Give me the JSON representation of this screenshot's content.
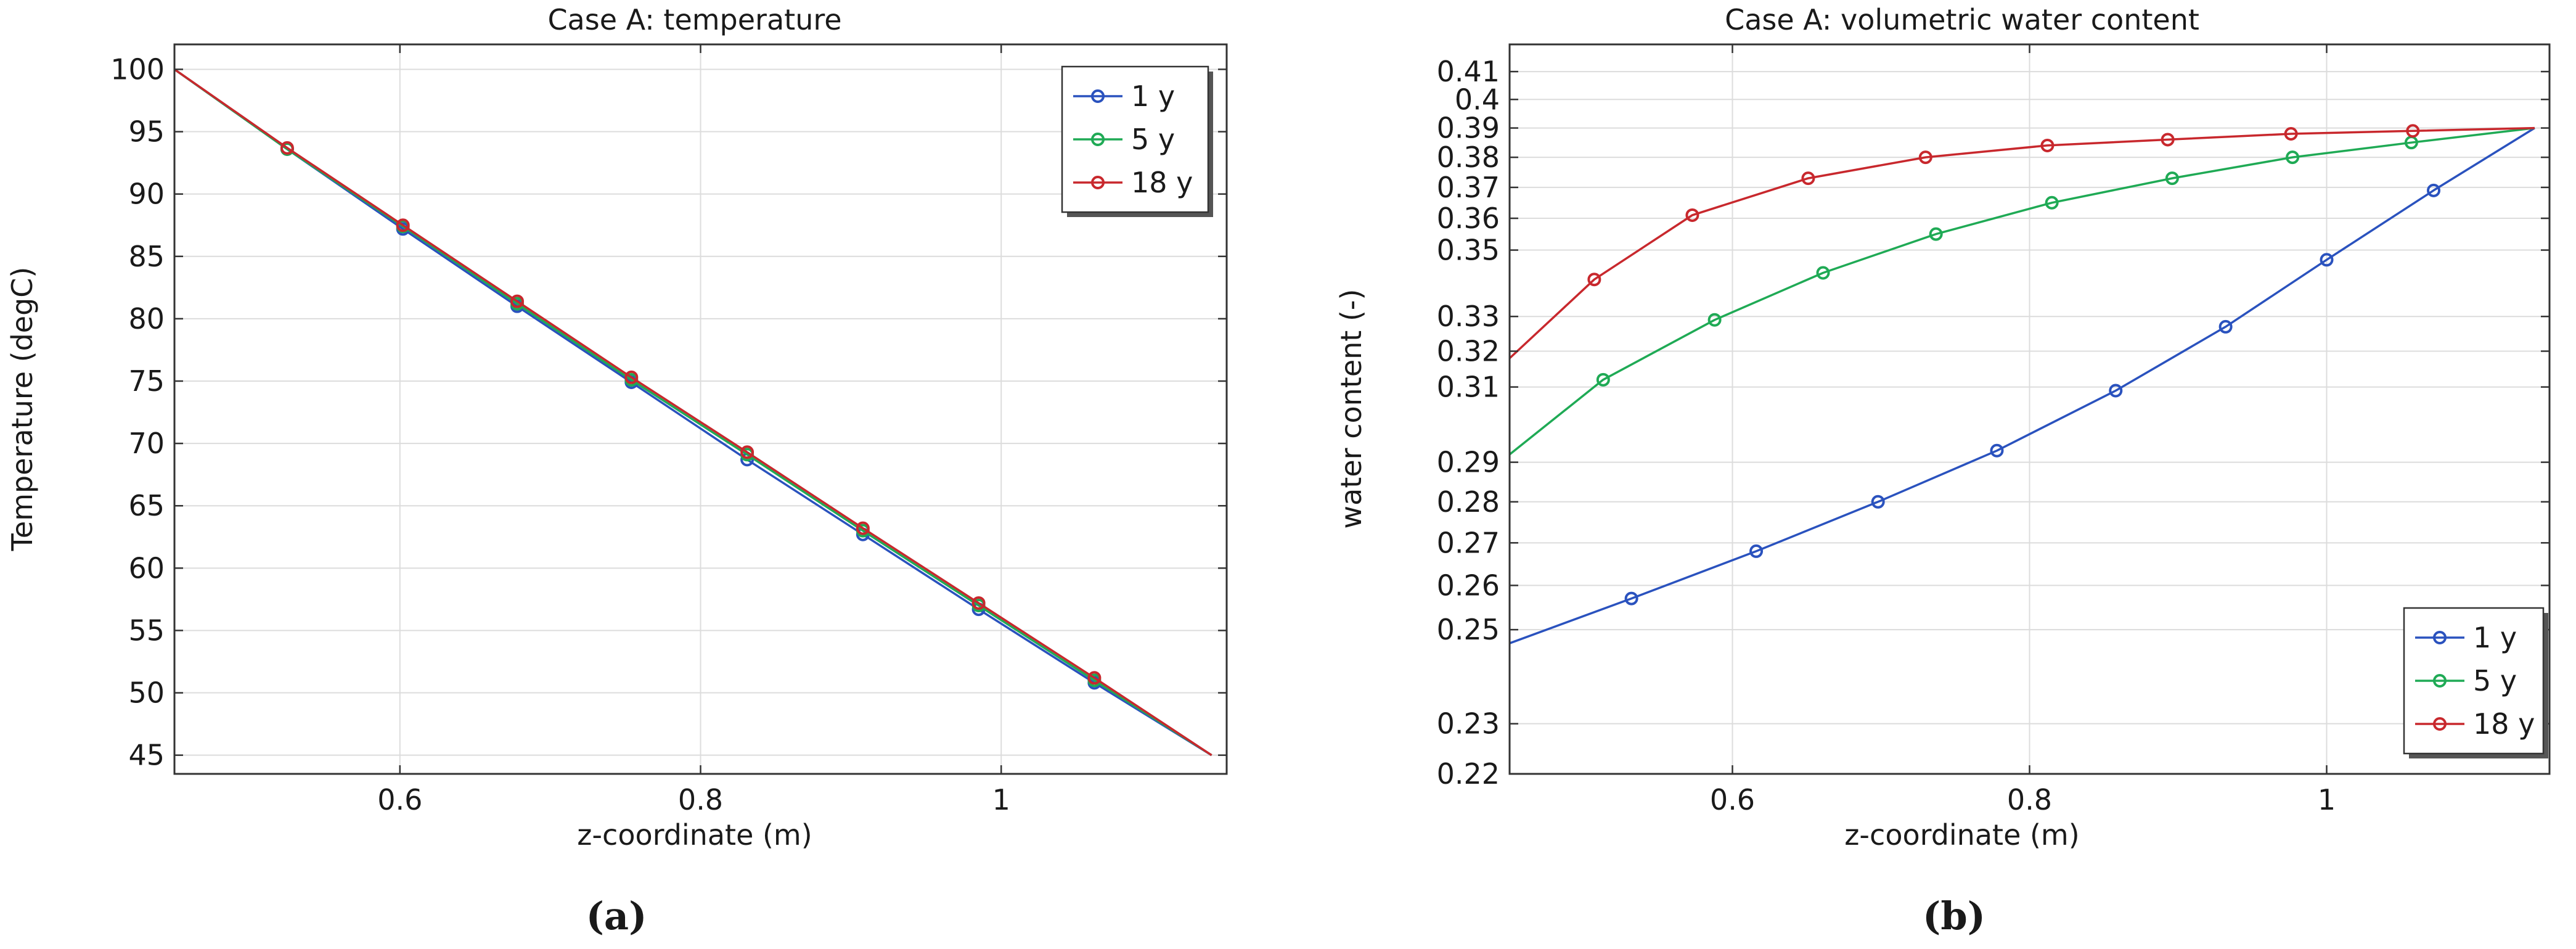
{
  "chart_data": [
    {
      "panel_label": "(a)",
      "type": "line",
      "title": "Case A: temperature",
      "xlabel": "z-coordinate (m)",
      "ylabel": "Temperature (degC)",
      "xlim": [
        0.45,
        1.15
      ],
      "ylim": [
        43.5,
        102
      ],
      "xscale": "linear",
      "yscale": "linear",
      "xticks": [
        0.6,
        0.8,
        1
      ],
      "xtick_labels": [
        "0.6",
        "0.8",
        "1"
      ],
      "yticks": [
        45,
        50,
        55,
        60,
        65,
        70,
        75,
        80,
        85,
        90,
        95,
        100
      ],
      "ytick_labels": [
        "45",
        "50",
        "55",
        "60",
        "65",
        "70",
        "75",
        "80",
        "85",
        "90",
        "95",
        "100"
      ],
      "grid": true,
      "legend_position": "top-right",
      "series": [
        {
          "name": "1 y",
          "color": "#2a52be",
          "x": [
            0.45,
            0.525,
            0.602,
            0.678,
            0.754,
            0.831,
            0.908,
            0.985,
            1.062,
            1.14
          ],
          "y": [
            100,
            93.6,
            87.2,
            81.0,
            74.9,
            68.7,
            62.7,
            56.7,
            50.8,
            45
          ],
          "marker_indices": [
            1,
            2,
            3,
            4,
            5,
            6,
            7,
            8
          ]
        },
        {
          "name": "5 y",
          "color": "#1faa55",
          "x": [
            0.45,
            0.525,
            0.602,
            0.678,
            0.754,
            0.831,
            0.908,
            0.985,
            1.062,
            1.14
          ],
          "y": [
            100,
            93.6,
            87.4,
            81.2,
            75.1,
            69.1,
            63.0,
            57.0,
            51.0,
            45
          ],
          "marker_indices": [
            1,
            2,
            3,
            4,
            5,
            6,
            7,
            8
          ]
        },
        {
          "name": "18 y",
          "color": "#c8282d",
          "x": [
            0.45,
            0.525,
            0.602,
            0.678,
            0.754,
            0.831,
            0.908,
            0.985,
            1.062,
            1.14
          ],
          "y": [
            100,
            93.7,
            87.5,
            81.4,
            75.3,
            69.3,
            63.2,
            57.2,
            51.2,
            45
          ],
          "marker_indices": [
            1,
            2,
            3,
            4,
            5,
            6,
            7,
            8
          ]
        }
      ]
    },
    {
      "panel_label": "(b)",
      "type": "line",
      "title": "Case A: volumetric water content",
      "xlabel": "z-coordinate (m)",
      "ylabel": "water content (-)",
      "xlim": [
        0.45,
        1.15
      ],
      "ylim": [
        0.22,
        0.42
      ],
      "xscale": "linear",
      "yscale": "log",
      "xticks": [
        0.6,
        0.8,
        1
      ],
      "xtick_labels": [
        "0.6",
        "0.8",
        "1"
      ],
      "yticks": [
        0.22,
        0.23,
        0.25,
        0.26,
        0.27,
        0.28,
        0.29,
        0.31,
        0.32,
        0.33,
        0.35,
        0.36,
        0.37,
        0.38,
        0.39,
        0.4,
        0.41
      ],
      "ytick_labels": [
        "0.22",
        "0.23",
        "0.25",
        "0.26",
        "0.27",
        "0.28",
        "0.29",
        "0.31",
        "0.32",
        "0.33",
        "0.35",
        "0.36",
        "0.37",
        "0.38",
        "0.39",
        "0.4",
        "0.41"
      ],
      "grid": true,
      "legend_position": "bottom-right",
      "series": [
        {
          "name": "1 y",
          "color": "#2a52be",
          "x": [
            0.45,
            0.532,
            0.616,
            0.698,
            0.778,
            0.858,
            0.932,
            1.0,
            1.072,
            1.14
          ],
          "y": [
            0.247,
            0.257,
            0.268,
            0.28,
            0.293,
            0.309,
            0.327,
            0.347,
            0.369,
            0.39
          ],
          "marker_indices": [
            1,
            2,
            3,
            4,
            5,
            6,
            7,
            8
          ]
        },
        {
          "name": "5 y",
          "color": "#1faa55",
          "x": [
            0.45,
            0.513,
            0.588,
            0.661,
            0.737,
            0.815,
            0.896,
            0.977,
            1.057,
            1.14
          ],
          "y": [
            0.292,
            0.312,
            0.329,
            0.343,
            0.355,
            0.365,
            0.373,
            0.38,
            0.385,
            0.39
          ],
          "marker_indices": [
            1,
            2,
            3,
            4,
            5,
            6,
            7,
            8
          ]
        },
        {
          "name": "18 y",
          "color": "#c8282d",
          "x": [
            0.45,
            0.507,
            0.573,
            0.651,
            0.73,
            0.812,
            0.893,
            0.976,
            1.058,
            1.14
          ],
          "y": [
            0.318,
            0.341,
            0.361,
            0.373,
            0.38,
            0.384,
            0.386,
            0.388,
            0.389,
            0.39
          ],
          "marker_indices": [
            1,
            2,
            3,
            4,
            5,
            6,
            7,
            8
          ]
        }
      ]
    }
  ]
}
